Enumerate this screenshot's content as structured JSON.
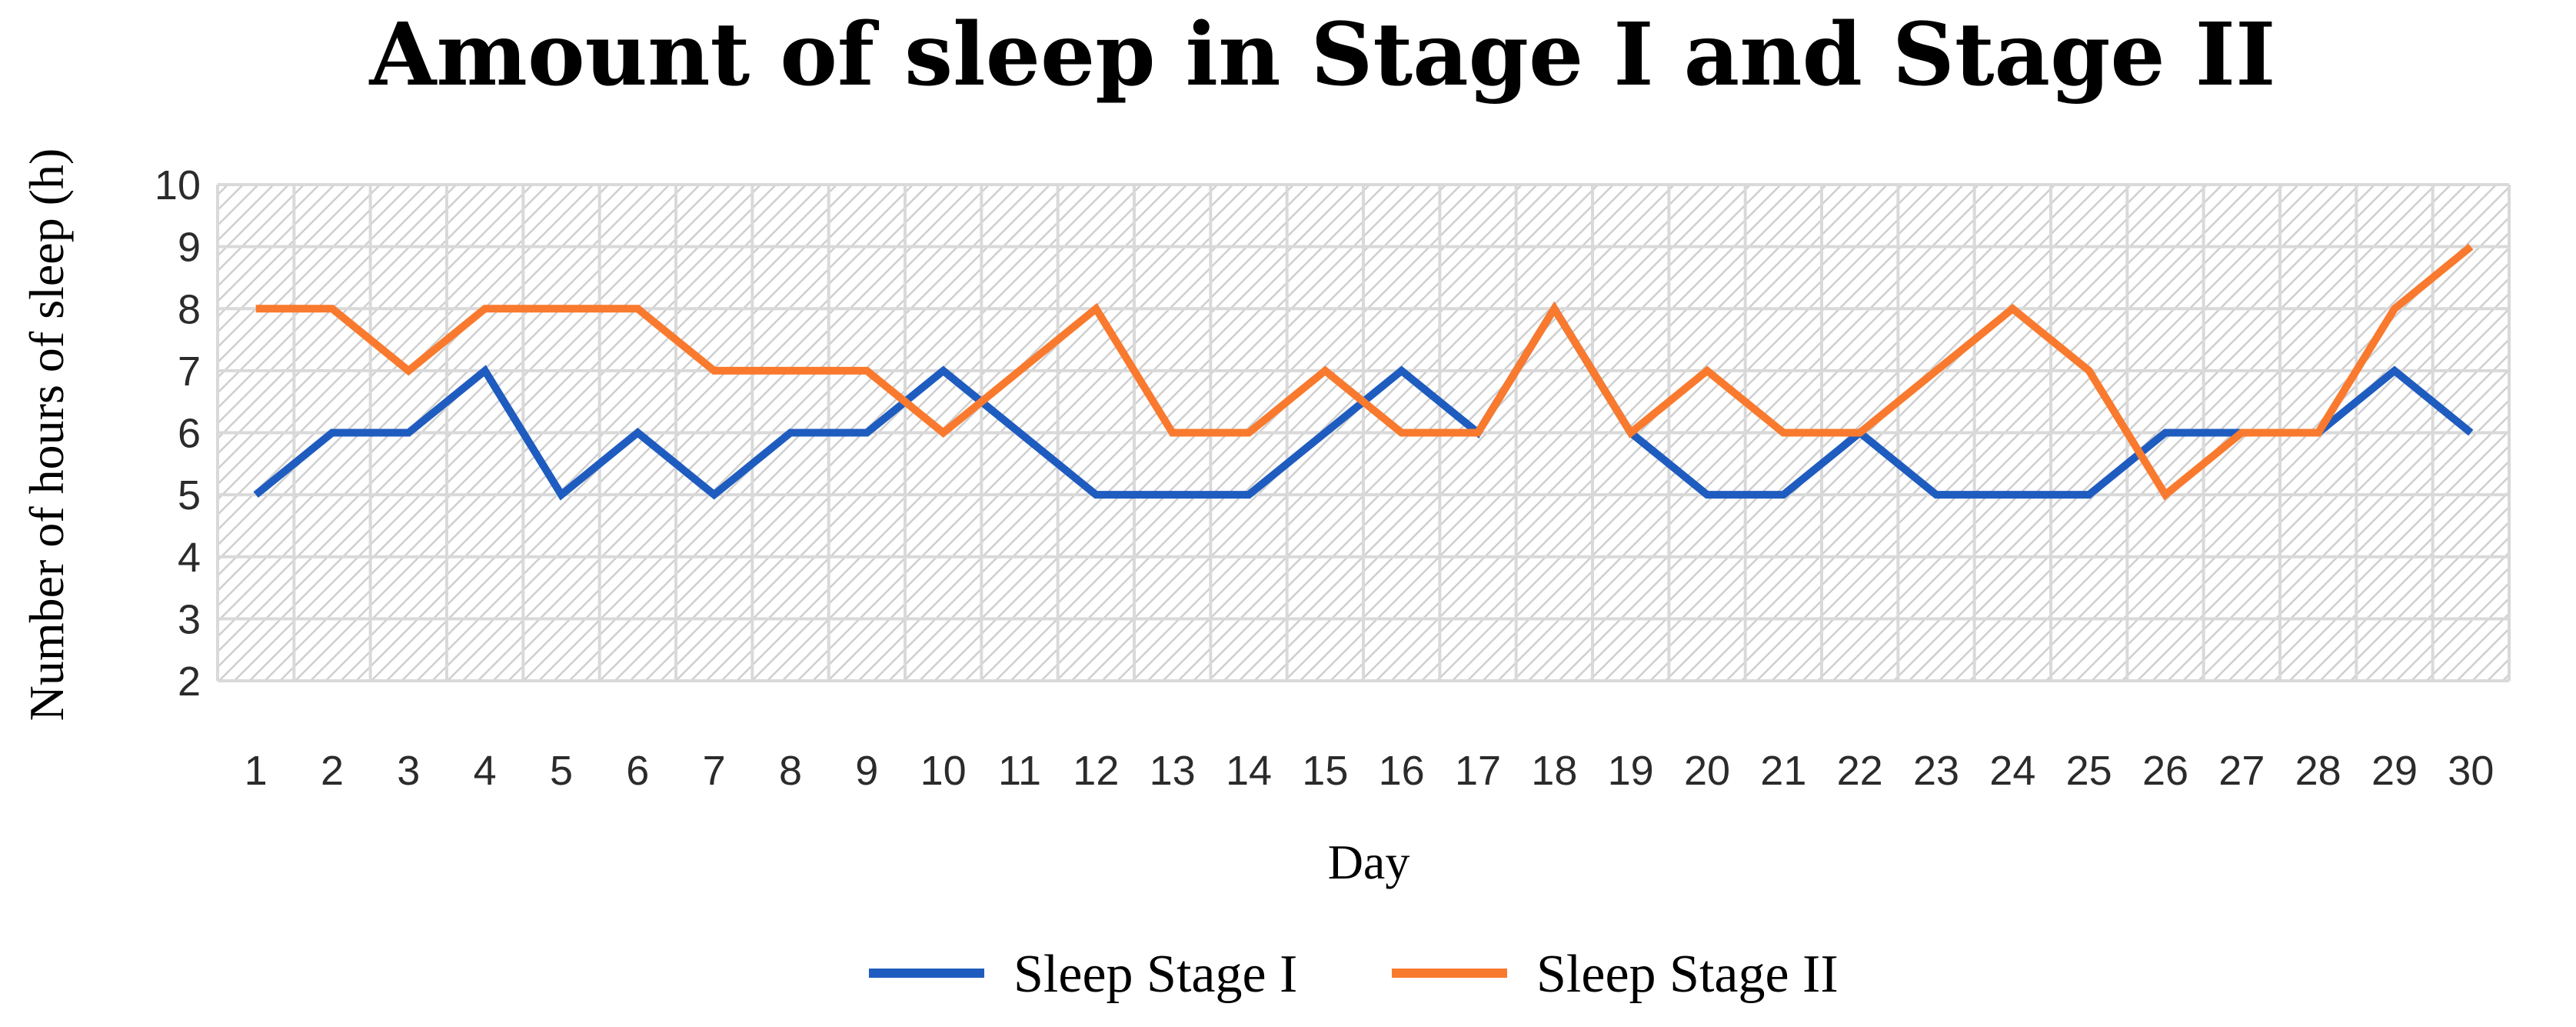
{
  "chart_data": {
    "type": "line",
    "title": "Amount of sleep in Stage I and Stage II",
    "xlabel": "Day",
    "ylabel": "Number of hours of sleep (h)",
    "x": [
      1,
      2,
      3,
      4,
      5,
      6,
      7,
      8,
      9,
      10,
      11,
      12,
      13,
      14,
      15,
      16,
      17,
      18,
      19,
      20,
      21,
      22,
      23,
      24,
      25,
      26,
      27,
      28,
      29,
      30
    ],
    "x_tick_labels": [
      "1",
      "2",
      "3",
      "4",
      "5",
      "6",
      "7",
      "8",
      "9",
      "10",
      "11",
      "12",
      "13",
      "14",
      "15",
      "16",
      "17",
      "18",
      "19",
      "20",
      "21",
      "22",
      "23",
      "24",
      "25",
      "26",
      "27",
      "28",
      "29",
      "30"
    ],
    "y_tick_labels": [
      "2",
      "3",
      "4",
      "5",
      "6",
      "7",
      "8",
      "9",
      "10"
    ],
    "ylim": [
      2,
      10
    ],
    "grid": true,
    "legend_position": "bottom",
    "series": [
      {
        "name": "Sleep Stage I",
        "color": "#1f5cbf",
        "values": [
          5,
          6,
          6,
          7,
          5,
          6,
          5,
          6,
          6,
          7,
          6,
          5,
          5,
          5,
          6,
          7,
          6,
          8,
          6,
          5,
          5,
          6,
          5,
          5,
          5,
          6,
          6,
          6,
          7,
          6
        ]
      },
      {
        "name": "Sleep Stage II",
        "color": "#f97a2e",
        "values": [
          8,
          8,
          7,
          8,
          8,
          8,
          7,
          7,
          7,
          6,
          7,
          8,
          6,
          6,
          7,
          6,
          6,
          8,
          6,
          7,
          6,
          6,
          7,
          8,
          7,
          5,
          6,
          6,
          8,
          9
        ]
      }
    ]
  }
}
